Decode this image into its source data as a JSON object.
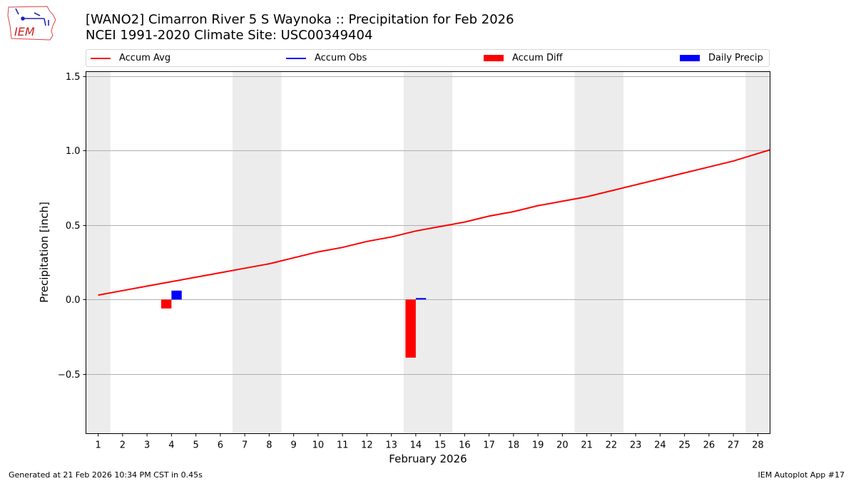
{
  "header": {
    "title_line1": "[WANO2] Cimarron River 5 S Waynoka :: Precipitation for Feb 2026",
    "title_line2": "NCEI 1991-2020 Climate Site: USC00349404",
    "logo_text": "IEM"
  },
  "legend": {
    "items": [
      {
        "label": "Accum Avg",
        "kind": "line",
        "color": "#ff0000"
      },
      {
        "label": "Accum Obs",
        "kind": "line",
        "color": "#0000ff"
      },
      {
        "label": "Accum Diff",
        "kind": "patch",
        "color": "#ff0000"
      },
      {
        "label": "Daily Precip",
        "kind": "patch",
        "color": "#0000ff"
      }
    ]
  },
  "footer": {
    "generated": "Generated at 21 Feb 2026 10:34 PM CST in 0.45s",
    "app": "IEM Autoplot App #17"
  },
  "chart_data": {
    "type": "line",
    "title": "[WANO2] Cimarron River 5 S Waynoka :: Precipitation for Feb 2026",
    "subtitle": "NCEI 1991-2020 Climate Site: USC00349404",
    "xlabel": "February 2026",
    "ylabel": "Precipitation [inch]",
    "x": [
      1,
      2,
      3,
      4,
      5,
      6,
      7,
      8,
      9,
      10,
      11,
      12,
      13,
      14,
      15,
      16,
      17,
      18,
      19,
      20,
      21,
      22,
      23,
      24,
      25,
      26,
      27,
      28
    ],
    "xlim": [
      0.5,
      28.5
    ],
    "ylim": [
      -0.9,
      1.53
    ],
    "yticks": [
      -0.5,
      0.0,
      0.5,
      1.0,
      1.5
    ],
    "ytick_labels": [
      "−0.5",
      "0.0",
      "0.5",
      "1.0",
      "1.5"
    ],
    "grid": "y",
    "weekend_shading": [
      [
        0.5,
        1.5
      ],
      [
        6.5,
        8.5
      ],
      [
        13.5,
        15.5
      ],
      [
        20.5,
        22.5
      ],
      [
        27.5,
        28.5
      ]
    ],
    "series": [
      {
        "name": "Accum Avg",
        "type": "line",
        "color": "#ff0000",
        "values": [
          0.03,
          0.06,
          0.09,
          0.12,
          0.15,
          0.18,
          0.21,
          0.24,
          0.28,
          0.32,
          0.35,
          0.39,
          0.42,
          0.46,
          0.49,
          0.52,
          0.56,
          0.59,
          0.63,
          0.66,
          0.69,
          0.73,
          0.77,
          0.81,
          0.85,
          0.89,
          0.93,
          0.98
        ],
        "extends_to": {
          "x": 28.5,
          "y": 1.005
        }
      },
      {
        "name": "Accum Obs",
        "type": "line",
        "color": "#0000ff",
        "values": []
      },
      {
        "name": "Accum Diff",
        "type": "bar",
        "color": "#ff0000",
        "points": [
          {
            "x": 4,
            "y": -0.06
          },
          {
            "x": 14,
            "y": -0.39
          }
        ]
      },
      {
        "name": "Daily Precip",
        "type": "bar",
        "color": "#0000ff",
        "points": [
          {
            "x": 4,
            "y": 0.06
          },
          {
            "x": 14,
            "y": 0.01
          }
        ]
      }
    ],
    "legend_position": "top"
  }
}
